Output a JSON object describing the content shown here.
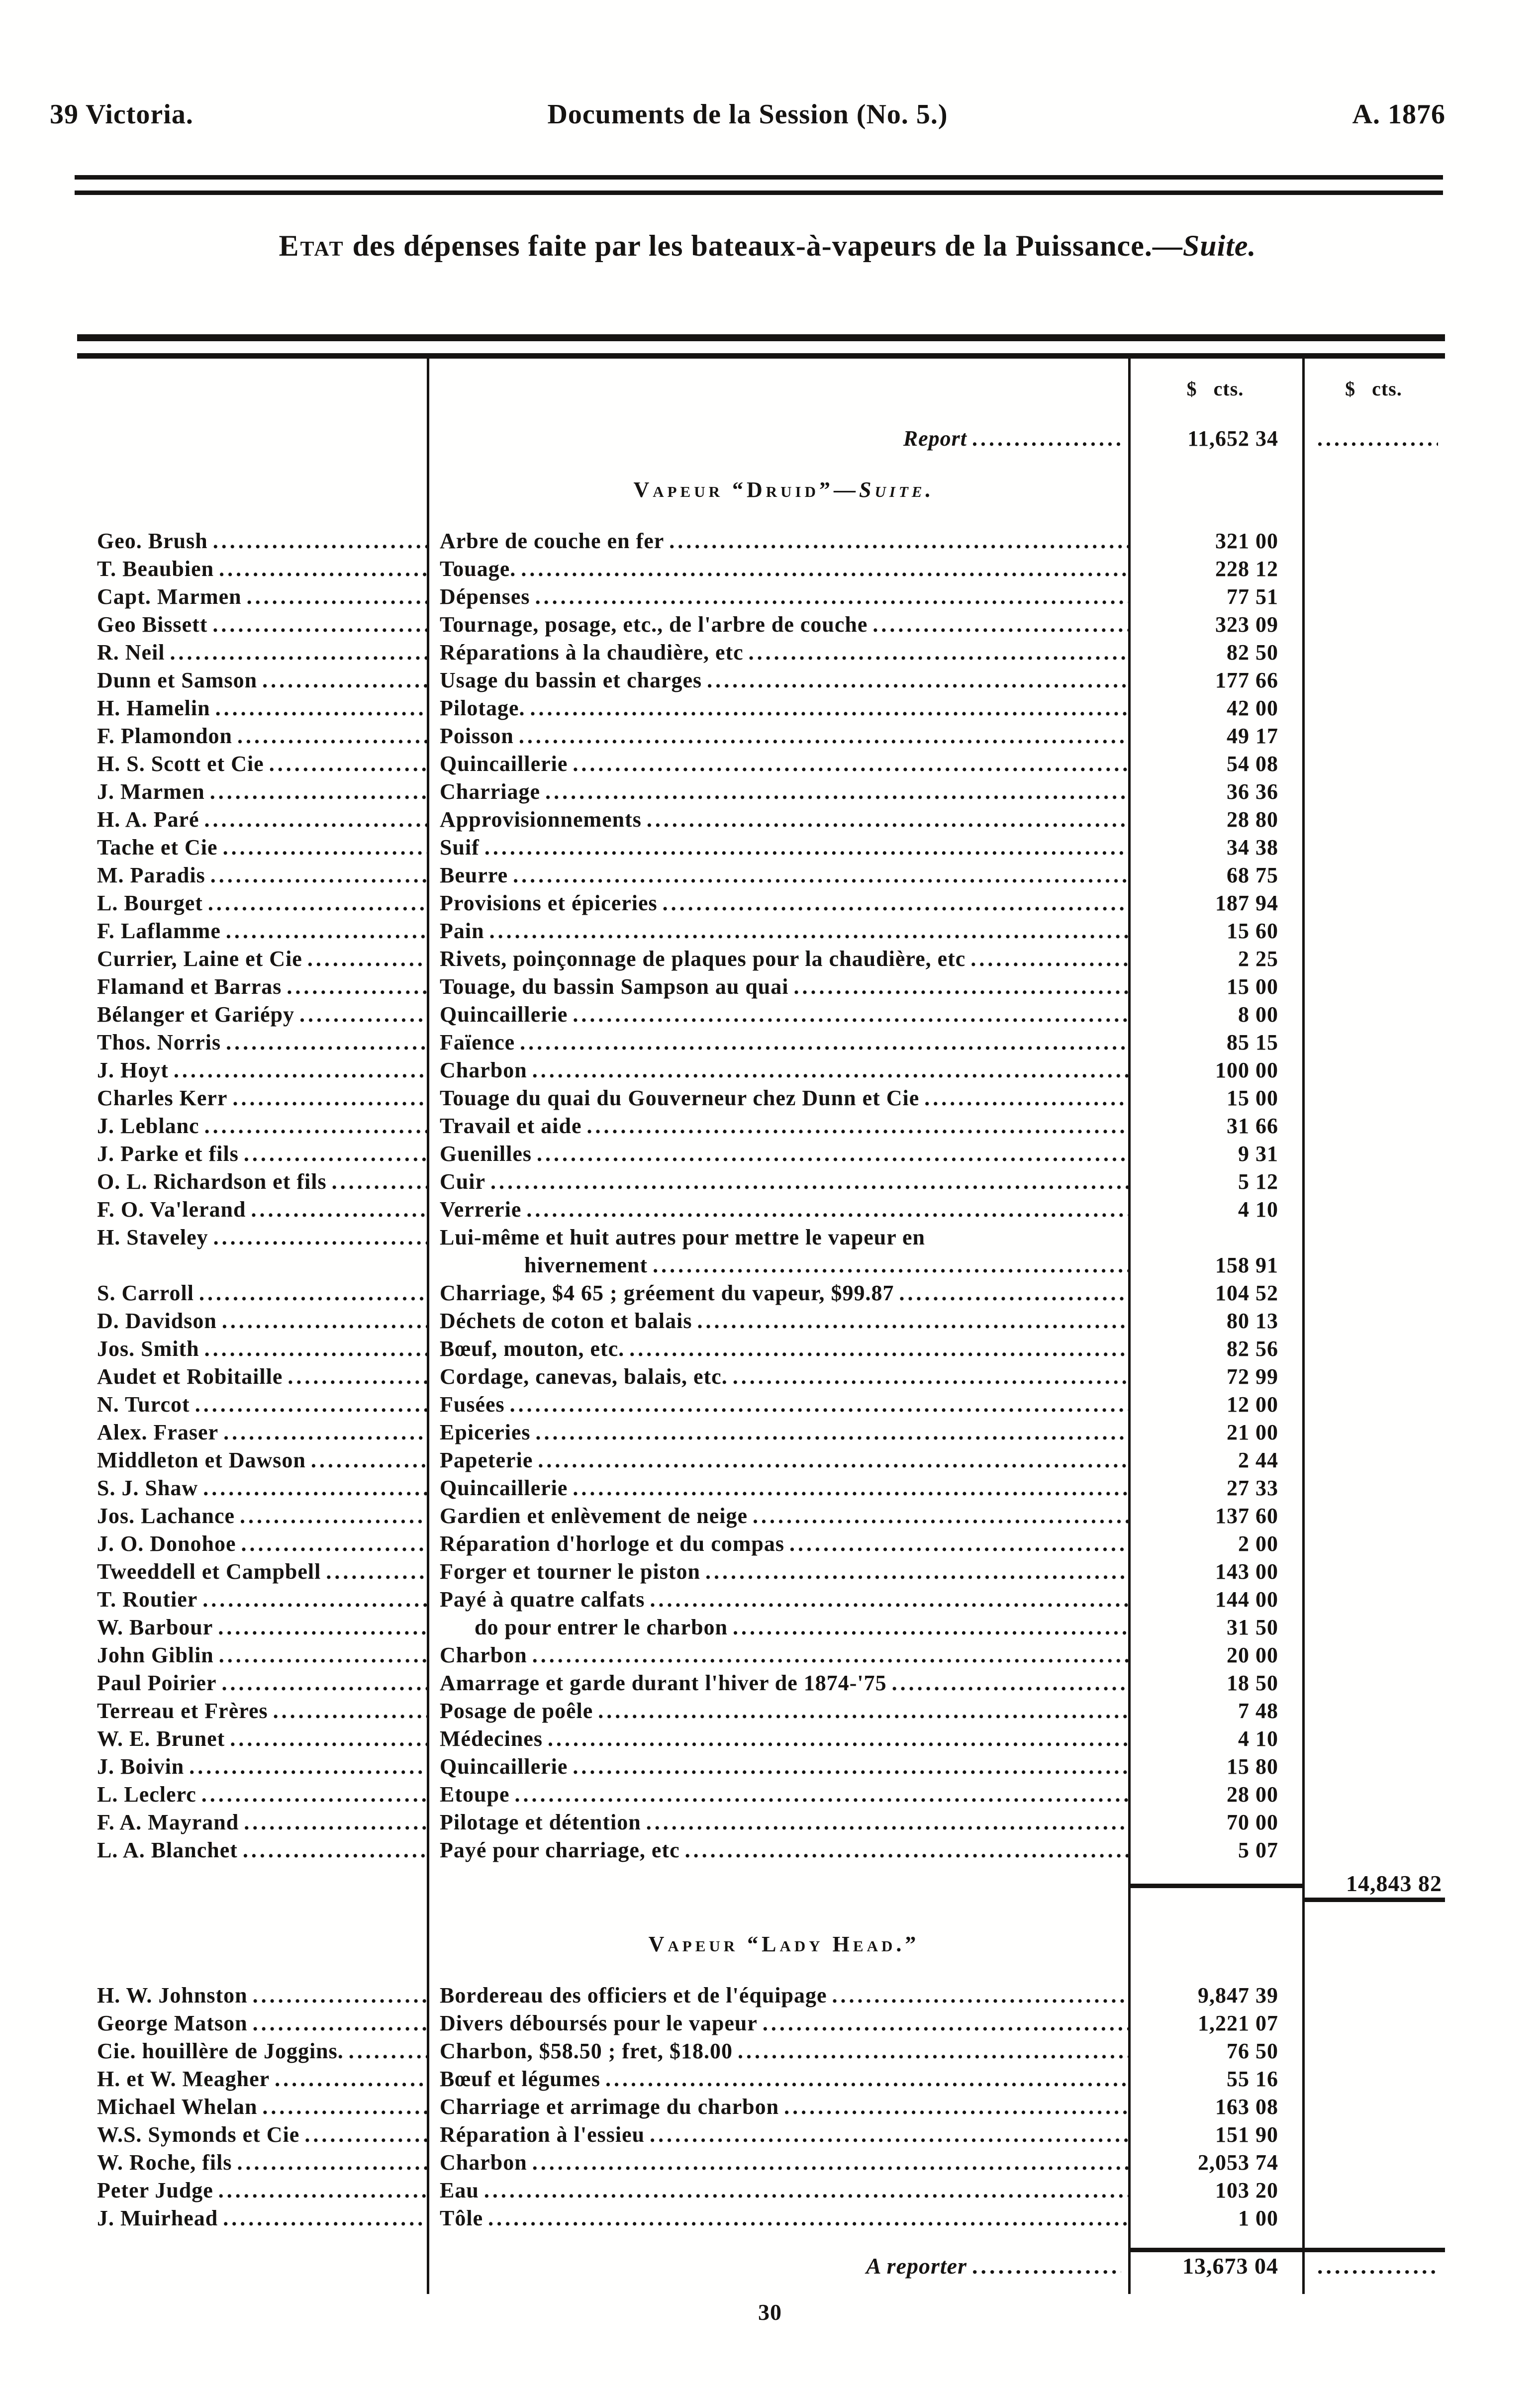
{
  "ink_color": "#161412",
  "paper_color": "#fffffe",
  "page_header": {
    "left": "39 Victoria.",
    "center": "Documents de la Session (No. 5.)",
    "right": "A. 1876"
  },
  "title": {
    "lead": "Etat",
    "body": " des dépenses faite par les bateaux-à-vapeurs de la Puissance.—",
    "suffix": "Suite."
  },
  "columns": {
    "amount_header_1": "$ cts.",
    "amount_header_2": "$ cts."
  },
  "report_row": {
    "label": "Report",
    "amount": "11,652 34"
  },
  "sections": [
    {
      "heading": "Vapeur “Druid”—",
      "heading_suffix": "Suite.",
      "subtotal": "14,843 82",
      "rows": [
        {
          "n": "Geo. Brush",
          "d": "Arbre de couche en fer",
          "a": "321 00"
        },
        {
          "n": "T. Beaubien",
          "d": "Touage.",
          "a": "228 12"
        },
        {
          "n": "Capt. Marmen",
          "d": "Dépenses",
          "a": "77 51"
        },
        {
          "n": "Geo Bissett",
          "d": "Tournage, posage, etc., de l'arbre de couche",
          "a": "323 09"
        },
        {
          "n": "R. Neil",
          "d": "Réparations à la chaudière, etc",
          "a": "82 50"
        },
        {
          "n": "Dunn et Samson",
          "d": "Usage du bassin et charges",
          "a": "177 66"
        },
        {
          "n": "H. Hamelin",
          "d": "Pilotage.",
          "a": "42 00"
        },
        {
          "n": "F. Plamondon",
          "d": "Poisson",
          "a": "49 17"
        },
        {
          "n": "H. S. Scott et Cie",
          "d": "Quincaillerie",
          "a": "54 08"
        },
        {
          "n": "J. Marmen",
          "d": "Charriage",
          "a": "36 36"
        },
        {
          "n": "H. A. Paré",
          "d": "Approvisionnements",
          "a": "28 80"
        },
        {
          "n": "Tache et Cie",
          "d": "Suif",
          "a": "34 38"
        },
        {
          "n": "M. Paradis",
          "d": "Beurre",
          "a": "68 75"
        },
        {
          "n": "L. Bourget",
          "d": "Provisions et épiceries",
          "a": "187 94"
        },
        {
          "n": "F. Laflamme",
          "d": "Pain",
          "a": "15 60"
        },
        {
          "n": "Currier, Laine et Cie",
          "d": "Rivets, poinçonnage de plaques pour la chaudière, etc",
          "a": "2 25"
        },
        {
          "n": "Flamand et Barras",
          "d": "Touage, du bassin Sampson au quai",
          "a": "15 00"
        },
        {
          "n": "Bélanger et Gariépy",
          "d": "Quincaillerie",
          "a": "8 00"
        },
        {
          "n": "Thos. Norris",
          "d": "Faïence",
          "a": "85 15"
        },
        {
          "n": "J. Hoyt",
          "d": "Charbon",
          "a": "100 00"
        },
        {
          "n": "Charles Kerr",
          "d": "Touage du quai du Gouverneur chez Dunn et Cie",
          "a": "15 00"
        },
        {
          "n": "J. Leblanc",
          "d": "Travail et aide",
          "a": "31 66"
        },
        {
          "n": "J. Parke et fils",
          "d": "Guenilles",
          "a": "9 31"
        },
        {
          "n": "O. L. Richardson et fils",
          "d": "Cuir",
          "a": "5 12"
        },
        {
          "n": "F. O. Va'lerand",
          "d": "Verrerie",
          "a": "4 10"
        },
        {
          "n": "H. Staveley",
          "d": "Lui-même et huit autres pour mettre le vapeur en",
          "a": "",
          "f": "wrap-start"
        },
        {
          "n": "",
          "d": "hivernement",
          "a": "158 91",
          "f": "wrap-end"
        },
        {
          "n": "S. Carroll",
          "d": "Charriage, $4 65 ; gréement du vapeur, $99.87",
          "a": "104 52"
        },
        {
          "n": "D. Davidson",
          "d": "Déchets de coton et balais",
          "a": "80 13"
        },
        {
          "n": "Jos. Smith",
          "d": "Bœuf, mouton, etc.",
          "a": "82 56"
        },
        {
          "n": "Audet et Robitaille",
          "d": "Cordage, canevas, balais, etc.",
          "a": "72 99"
        },
        {
          "n": "N. Turcot",
          "d": "Fusées",
          "a": "12 00"
        },
        {
          "n": "Alex. Fraser",
          "d": "Epiceries",
          "a": "21 00"
        },
        {
          "n": "Middleton et Dawson",
          "d": "Papeterie",
          "a": "2 44"
        },
        {
          "n": "S. J. Shaw",
          "d": "Quincaillerie",
          "a": "27 33"
        },
        {
          "n": "Jos. Lachance",
          "d": "Gardien et enlèvement de neige",
          "a": "137 60"
        },
        {
          "n": "J. O. Donohoe",
          "d": "Réparation d'horloge et du compas",
          "a": "2 00"
        },
        {
          "n": "Tweeddell et Campbell",
          "d": "Forger et tourner le piston",
          "a": "143 00"
        },
        {
          "n": "T. Routier",
          "d": "Payé à quatre calfats",
          "a": "144 00"
        },
        {
          "n": "W. Barbour",
          "d": "do pour entrer le charbon",
          "a": "31 50",
          "f": "do-indent"
        },
        {
          "n": "John Giblin",
          "d": "Charbon",
          "a": "20 00"
        },
        {
          "n": "Paul Poirier",
          "d": "Amarrage et garde durant l'hiver de 1874-'75",
          "a": "18 50"
        },
        {
          "n": "Terreau et Frères",
          "d": "Posage de poêle",
          "a": "7 48"
        },
        {
          "n": "W. E. Brunet",
          "d": "Médecines",
          "a": "4 10"
        },
        {
          "n": "J. Boivin",
          "d": "Quincaillerie",
          "a": "15 80"
        },
        {
          "n": "L. Leclerc",
          "d": "Etoupe",
          "a": "28 00"
        },
        {
          "n": "F. A. Mayrand",
          "d": "Pilotage et détention",
          "a": "70 00"
        },
        {
          "n": "L. A. Blanchet",
          "d": "Payé pour charriage, etc",
          "a": "5 07"
        }
      ]
    },
    {
      "heading": "Vapeur “Lady Head.”",
      "heading_suffix": "",
      "carry_label": "A reporter",
      "carry_amount": "13,673 04",
      "rows": [
        {
          "n": "H. W. Johnston",
          "d": "Bordereau des officiers et de l'équipage",
          "a": "9,847 39"
        },
        {
          "n": "George Matson",
          "d": "Divers déboursés pour le vapeur",
          "a": "1,221 07"
        },
        {
          "n": "Cie. houillère de Joggins.",
          "d": "Charbon, $58.50 ; fret, $18.00",
          "a": "76 50"
        },
        {
          "n": "H. et W. Meagher",
          "d": "Bœuf et légumes",
          "a": "55 16"
        },
        {
          "n": "Michael Whelan",
          "d": "Charriage et arrimage du charbon",
          "a": "163 08"
        },
        {
          "n": "W.S. Symonds et Cie",
          "d": "Réparation à l'essieu",
          "a": "151 90"
        },
        {
          "n": "W. Roche, fils",
          "d": "Charbon",
          "a": "2,053 74"
        },
        {
          "n": "Peter Judge",
          "d": "Eau",
          "a": "103 20"
        },
        {
          "n": "J. Muirhead",
          "d": "Tôle",
          "a": "1 00"
        }
      ]
    }
  ],
  "page_number": "30"
}
